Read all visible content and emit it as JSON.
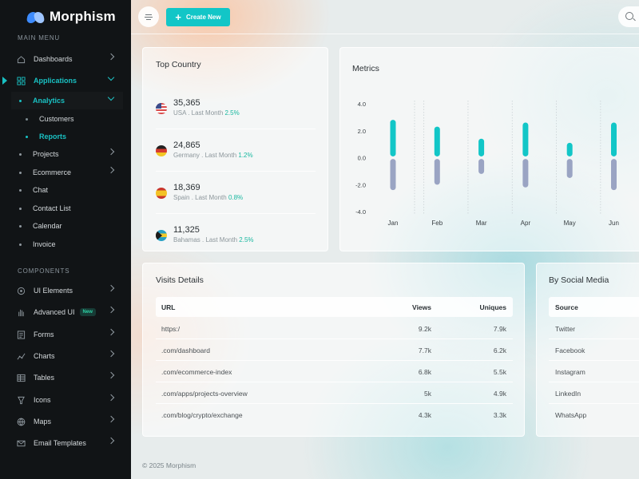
{
  "brand": {
    "name": "Morphism"
  },
  "sidebar": {
    "main_label": "MAIN MENU",
    "components_label": "COMPONENTS",
    "items": [
      {
        "label": "Dashboards",
        "icon": "home-icon"
      },
      {
        "label": "Applications",
        "icon": "grid-icon"
      },
      {
        "label": "Analytics"
      },
      {
        "label": "Customers"
      },
      {
        "label": "Reports"
      },
      {
        "label": "Projects"
      },
      {
        "label": "Ecommerce"
      },
      {
        "label": "Chat"
      },
      {
        "label": "Contact List"
      },
      {
        "label": "Calendar"
      },
      {
        "label": "Invoice"
      }
    ],
    "component_items": [
      {
        "label": "UI Elements",
        "icon": "target-icon"
      },
      {
        "label": "Advanced UI",
        "icon": "hand-icon",
        "badge": "New"
      },
      {
        "label": "Forms",
        "icon": "form-icon"
      },
      {
        "label": "Charts",
        "icon": "chart-icon"
      },
      {
        "label": "Tables",
        "icon": "table-icon"
      },
      {
        "label": "Icons",
        "icon": "trophy-icon"
      },
      {
        "label": "Maps",
        "icon": "globe-icon"
      },
      {
        "label": "Email Templates",
        "icon": "mail-icon"
      }
    ]
  },
  "header": {
    "create_label": "Create New"
  },
  "top_country": {
    "title": "Top Country",
    "rows": [
      {
        "value": "35,365",
        "country": "USA",
        "sub": " . Last Month ",
        "pct": "2.5%",
        "flag": "usa"
      },
      {
        "value": "24,865",
        "country": "Germany",
        "sub": " . Last Month ",
        "pct": "1.2%",
        "flag": "germany"
      },
      {
        "value": "18,369",
        "country": "Spain",
        "sub": " . Last Month ",
        "pct": "0.8%",
        "flag": "spain"
      },
      {
        "value": "11,325",
        "country": "Bahamas",
        "sub": " . Last Month ",
        "pct": "2.5%",
        "flag": "bahamas"
      }
    ]
  },
  "metrics": {
    "title": "Metrics"
  },
  "chart_data": {
    "type": "bar",
    "title": "",
    "categories": [
      "Jan",
      "Feb",
      "Mar",
      "Apr",
      "May",
      "Jun"
    ],
    "series": [
      {
        "values": [
          2.6,
          2.1,
          1.2,
          2.4,
          0.9,
          2.4
        ]
      },
      {
        "values": [
          -2.2,
          -1.8,
          -1.0,
          -2.0,
          -1.3,
          -2.2
        ]
      }
    ],
    "yticks": [
      "4.0",
      "2.0",
      "0.0",
      "-2.0",
      "-4.0"
    ],
    "ylim": [
      -4,
      4
    ],
    "colors": [
      "#12c6c7",
      "#9aa4c3"
    ],
    "grid": true
  },
  "visits": {
    "title": "Visits Details",
    "columns": [
      "URL",
      "Views",
      "Uniques"
    ],
    "rows": [
      [
        "https:/",
        "9.2k",
        "7.9k"
      ],
      [
        ".com/dashboard",
        "7.7k",
        "6.2k"
      ],
      [
        ".com/ecommerce-index",
        "6.8k",
        "5.5k"
      ],
      [
        ".com/apps/projects-overview",
        "5k",
        "4.9k"
      ],
      [
        ".com/blog/crypto/exchange",
        "4.3k",
        "3.3k"
      ]
    ]
  },
  "social": {
    "title": "By Social Media",
    "column": "Source",
    "rows": [
      "Twitter",
      "Facebook",
      "Instagram",
      "LinkedIn",
      "WhatsApp"
    ]
  },
  "footer": {
    "text": "© 2025 Morphism"
  }
}
